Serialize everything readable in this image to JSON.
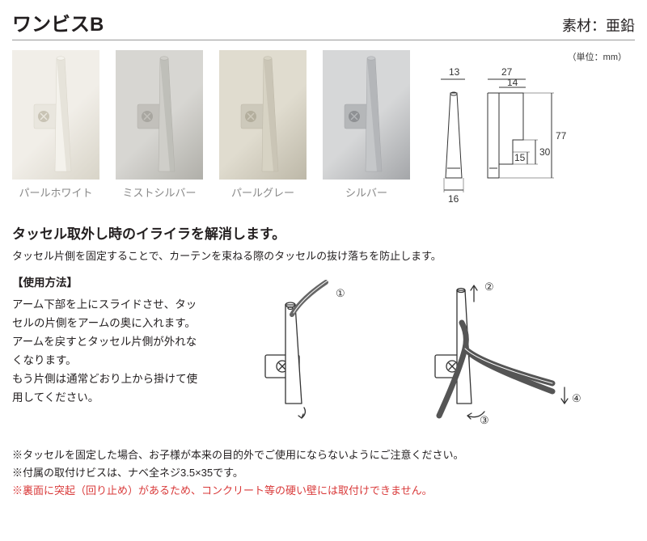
{
  "header": {
    "title": "ワンビスB",
    "material": "素材：亜鉛"
  },
  "swatches": [
    {
      "label": "パールホワイト",
      "bg": "#f1eee8",
      "arm": "#f4f2ec",
      "plate": "#e9e6de",
      "screw": "#c8c3b4",
      "shade": "#d8d4c8"
    },
    {
      "label": "ミストシルバー",
      "bg": "#d7d6d2",
      "arm": "#cfcec9",
      "plate": "#c2c0bb",
      "screw": "#a8a6a0",
      "shade": "#b0afa9"
    },
    {
      "label": "パールグレー",
      "bg": "#e0dccf",
      "arm": "#d7d3c4",
      "plate": "#cdc9bb",
      "screw": "#b3ae9d",
      "shade": "#bdb8a8"
    },
    {
      "label": "シルバー",
      "bg": "#d6d7d8",
      "arm": "#c5c7c9",
      "plate": "#b5b7b9",
      "screw": "#8e9093",
      "shade": "#a4a6a9"
    }
  ],
  "dimensions": {
    "unit": "（単位：mm）",
    "w_top_outer": "13",
    "w_top": "27",
    "w_inner": "14",
    "h_total": "77",
    "h_top": "30",
    "h_flange": "15",
    "w_bottom": "16"
  },
  "headline": "タッセル取外し時のイライラを解消します。",
  "subtext": "タッセル片側を固定することで、カーテンを束ねる際のタッセルの抜け落ちを防止します。",
  "usage": {
    "title": "【使用方法】",
    "body": "アーム下部を上にスライドさせ、タッセルの片側をアームの奥に入れます。\nアームを戻すとタッセル片側が外れなくなります。\nもう片側は通常どおり上から掛けて使用してください。",
    "steps": [
      "①",
      "②",
      "③",
      "④"
    ]
  },
  "notes": {
    "n1": "※タッセルを固定した場合、お子様が本来の目的外でご使用にならないようにご注意ください。",
    "n2": "※付属の取付けビスは、ナベ全ネジ3.5×35です。",
    "n3": "※裏面に突起（回り止め）があるため、コンクリート等の硬い壁には取付けできません。"
  },
  "style": {
    "body_width": 800,
    "body_height": 669,
    "title_size": 24,
    "material_size": 18,
    "swatch_label_size": 13,
    "swatch_label_color": "#888888",
    "headline_size": 17,
    "body_text_size": 13.5,
    "note_size": 13,
    "note_red_color": "#d93a3a",
    "divider_color": "#999999"
  }
}
